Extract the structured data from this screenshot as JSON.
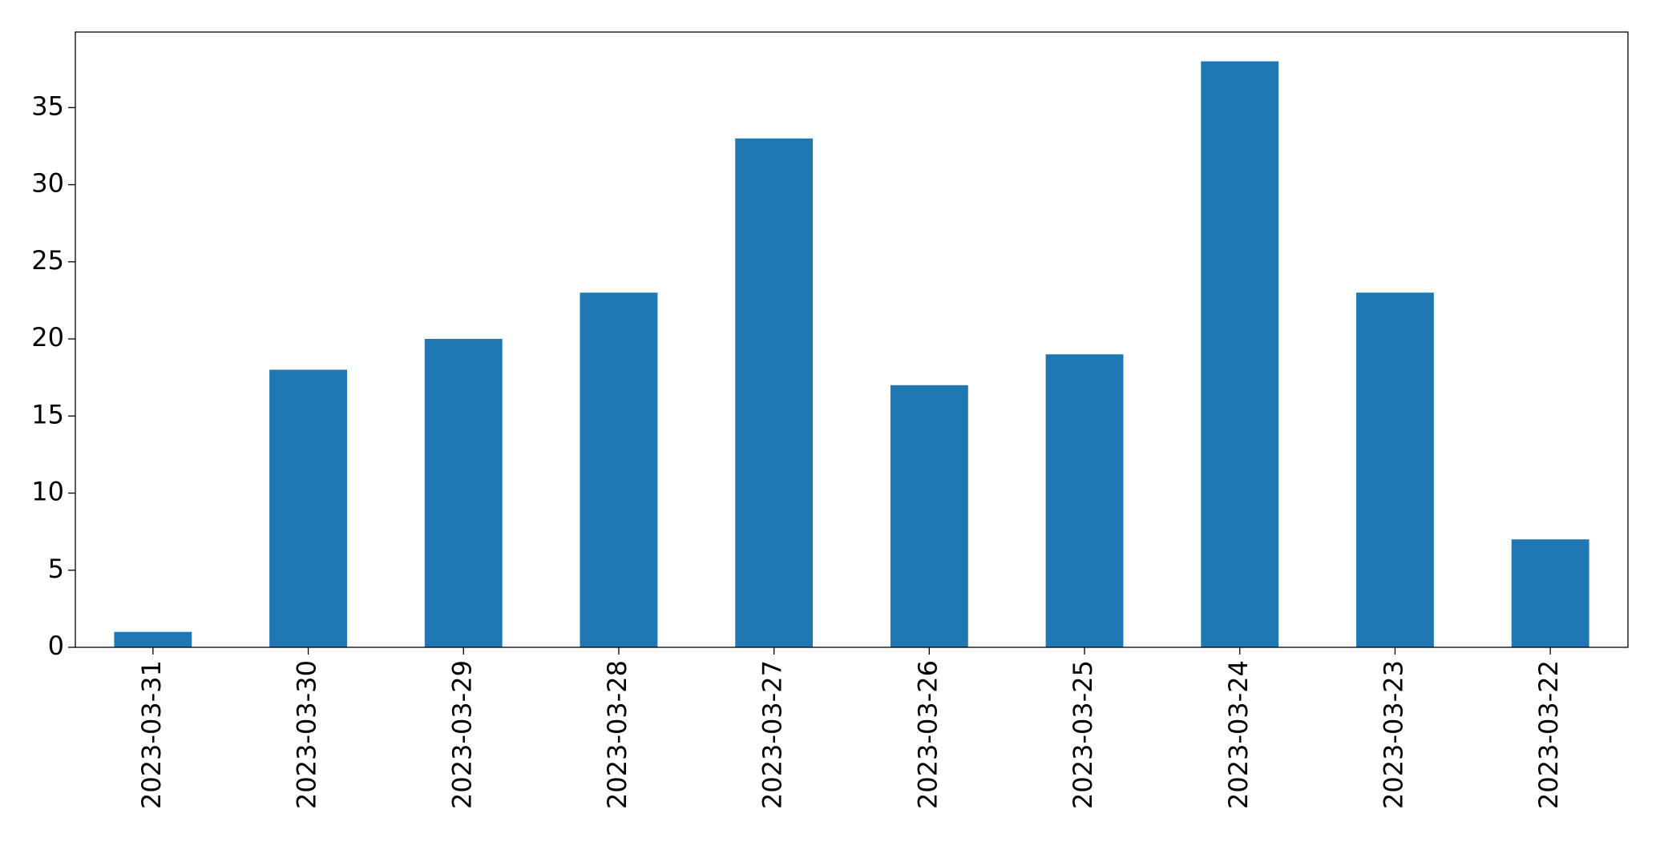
{
  "chart_data": {
    "type": "bar",
    "categories": [
      "2023-03-31",
      "2023-03-30",
      "2023-03-29",
      "2023-03-28",
      "2023-03-27",
      "2023-03-26",
      "2023-03-25",
      "2023-03-24",
      "2023-03-23",
      "2023-03-22"
    ],
    "values": [
      1,
      18,
      20,
      23,
      33,
      17,
      19,
      38,
      23,
      7
    ],
    "color": "#1f77b4",
    "ylim": [
      0,
      39.9
    ],
    "yticks": [
      0,
      5,
      10,
      15,
      20,
      25,
      30,
      35
    ],
    "grid": false
  }
}
